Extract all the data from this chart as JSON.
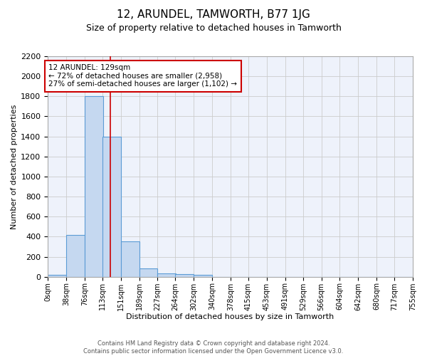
{
  "title": "12, ARUNDEL, TAMWORTH, B77 1JG",
  "subtitle": "Size of property relative to detached houses in Tamworth",
  "xlabel": "Distribution of detached houses by size in Tamworth",
  "ylabel": "Number of detached properties",
  "bin_edges": [
    0,
    38,
    76,
    113,
    151,
    189,
    227,
    264,
    302,
    340,
    378,
    415,
    453,
    491,
    529,
    566,
    604,
    642,
    680,
    717,
    755
  ],
  "bar_heights": [
    20,
    420,
    1800,
    1400,
    350,
    80,
    30,
    25,
    20,
    0,
    0,
    0,
    0,
    0,
    0,
    0,
    0,
    0,
    0,
    0
  ],
  "bar_color": "#c5d8f0",
  "bar_edge_color": "#5b9bd5",
  "property_size": 129,
  "red_line_color": "#cc0000",
  "annotation_text": "12 ARUNDEL: 129sqm\n← 72% of detached houses are smaller (2,958)\n27% of semi-detached houses are larger (1,102) →",
  "annotation_box_color": "#ffffff",
  "annotation_box_edge_color": "#cc0000",
  "ylim": [
    0,
    2200
  ],
  "yticks": [
    0,
    200,
    400,
    600,
    800,
    1000,
    1200,
    1400,
    1600,
    1800,
    2000,
    2200
  ],
  "tick_labels": [
    "0sqm",
    "38sqm",
    "76sqm",
    "113sqm",
    "151sqm",
    "189sqm",
    "227sqm",
    "264sqm",
    "302sqm",
    "340sqm",
    "378sqm",
    "415sqm",
    "453sqm",
    "491sqm",
    "529sqm",
    "566sqm",
    "604sqm",
    "642sqm",
    "680sqm",
    "717sqm",
    "755sqm"
  ],
  "footnote": "Contains HM Land Registry data © Crown copyright and database right 2024.\nContains public sector information licensed under the Open Government Licence v3.0.",
  "grid_color": "#cccccc",
  "background_color": "#eef2fb",
  "title_fontsize": 11,
  "subtitle_fontsize": 9
}
